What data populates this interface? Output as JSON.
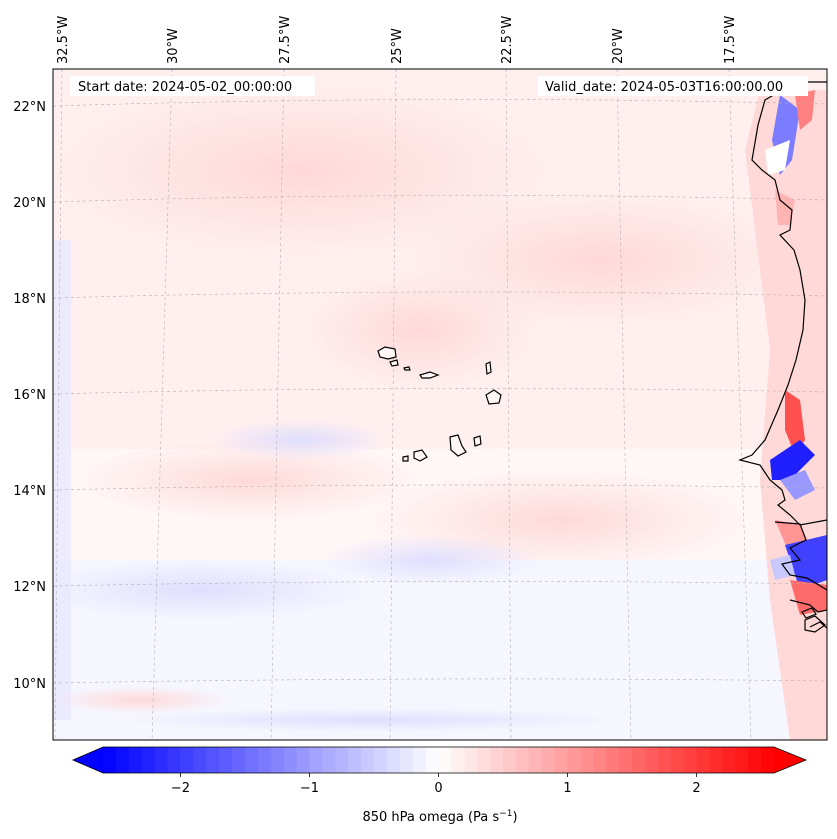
{
  "map": {
    "start_date": "Start date: 2024-05-02_00:00:00",
    "valid_date": "Valid_date: 2024-05-03T16:00:00.00",
    "lon_labels": [
      "32.5°W",
      "30°W",
      "27.5°W",
      "25°W",
      "22.5°W",
      "20°W",
      "17.5°W"
    ],
    "lat_labels": [
      "22°N",
      "20°N",
      "18°N",
      "16°N",
      "14°N",
      "12°N",
      "10°N"
    ],
    "coastline_color": "#000000",
    "gridline_color": "#b0b0b0"
  },
  "colorbar": {
    "label": "850 hPa omega (Pa s",
    "label_sup": "−1",
    "label_end": ")",
    "ticks": [
      "−2",
      "−1",
      "0",
      "1",
      "2"
    ],
    "tick_values": [
      -2,
      -1,
      0,
      1,
      2
    ],
    "range": [
      -2.6,
      2.6
    ],
    "cmap": "bwr",
    "low_color": "#0000ff",
    "mid_color": "#ffffff",
    "high_color": "#ff0000"
  }
}
